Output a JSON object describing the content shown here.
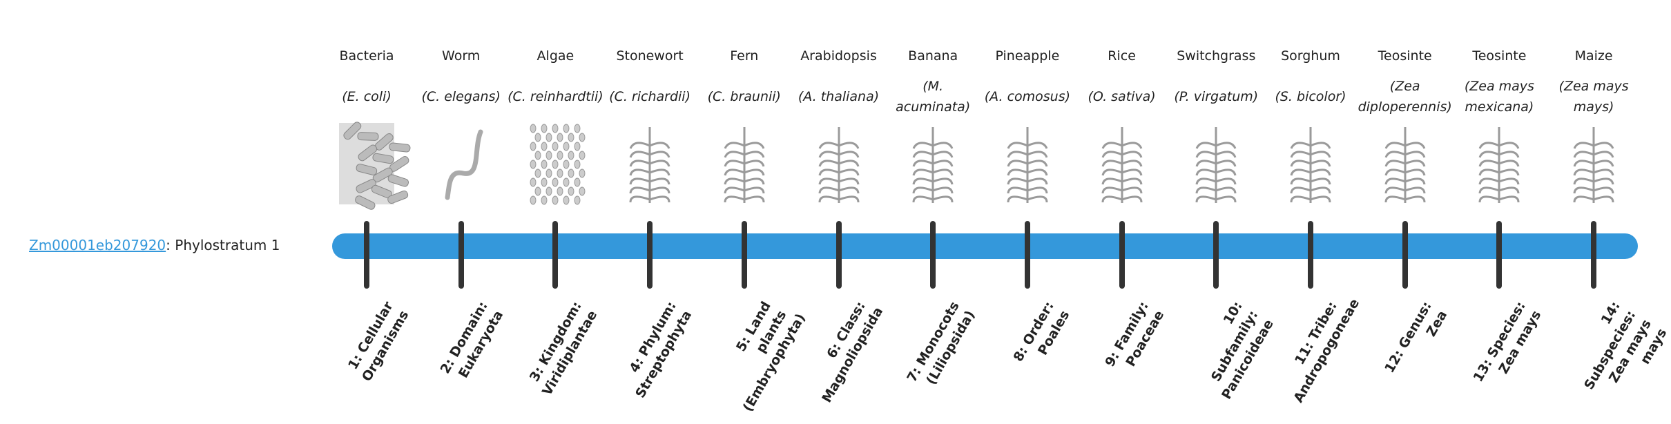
{
  "gene": {
    "id": "Zm00001eb207920",
    "separator": ": ",
    "label": "Phylostratum 1"
  },
  "colors": {
    "bar": "#3498db",
    "tick": "#333333",
    "link": "#3498db"
  },
  "taxa": [
    {
      "common": "Bacteria",
      "latin": "(E. coli)",
      "stratum": "1: Cellular Organisms",
      "icon": "bacteria-icon"
    },
    {
      "common": "Worm",
      "latin": "(C. elegans)",
      "stratum": "2: Domain: Eukaryota",
      "icon": "worm-icon"
    },
    {
      "common": "Algae",
      "latin": "(C. reinhardtii)",
      "stratum": "3: Kingdom: Viridiplantae",
      "icon": "algae-icon"
    },
    {
      "common": "Stonewort",
      "latin": "(C. richardii)",
      "stratum": "4: Phylum: Streptophyta",
      "icon": "stonewort-icon"
    },
    {
      "common": "Fern",
      "latin": "(C. braunii)",
      "stratum": "5: Land plants (Embryophyta)",
      "icon": "fern-icon"
    },
    {
      "common": "Arabidopsis",
      "latin": "(A. thaliana)",
      "stratum": "6: Class: Magnoliopsida",
      "icon": "arabidopsis-icon"
    },
    {
      "common": "Banana",
      "latin": "(M. acuminata)",
      "stratum": "7: Monocots (Liliopsida)",
      "icon": "banana-icon"
    },
    {
      "common": "Pineapple",
      "latin": "(A. comosus)",
      "stratum": "8: Order: Poales",
      "icon": "pineapple-icon"
    },
    {
      "common": "Rice",
      "latin": "(O. sativa)",
      "stratum": "9: Family: Poaceae",
      "icon": "rice-icon"
    },
    {
      "common": "Switchgrass",
      "latin": "(P. virgatum)",
      "stratum": "10: Subfamily: Panicoideae",
      "icon": "switchgrass-icon"
    },
    {
      "common": "Sorghum",
      "latin": "(S. bicolor)",
      "stratum": "11: Tribe: Andropogoneae",
      "icon": "sorghum-icon"
    },
    {
      "common": "Teosinte",
      "latin": "(Zea diploperennis)",
      "stratum": "12: Genus: Zea",
      "icon": "teosinte-icon"
    },
    {
      "common": "Teosinte",
      "latin": "(Zea mays mexicana)",
      "stratum": "13: Species: Zea mays",
      "icon": "teosinte-icon"
    },
    {
      "common": "Maize",
      "latin": "(Zea mays mays)",
      "stratum": "14: Subspecies: Zea mays mays",
      "icon": "maize-icon"
    }
  ]
}
